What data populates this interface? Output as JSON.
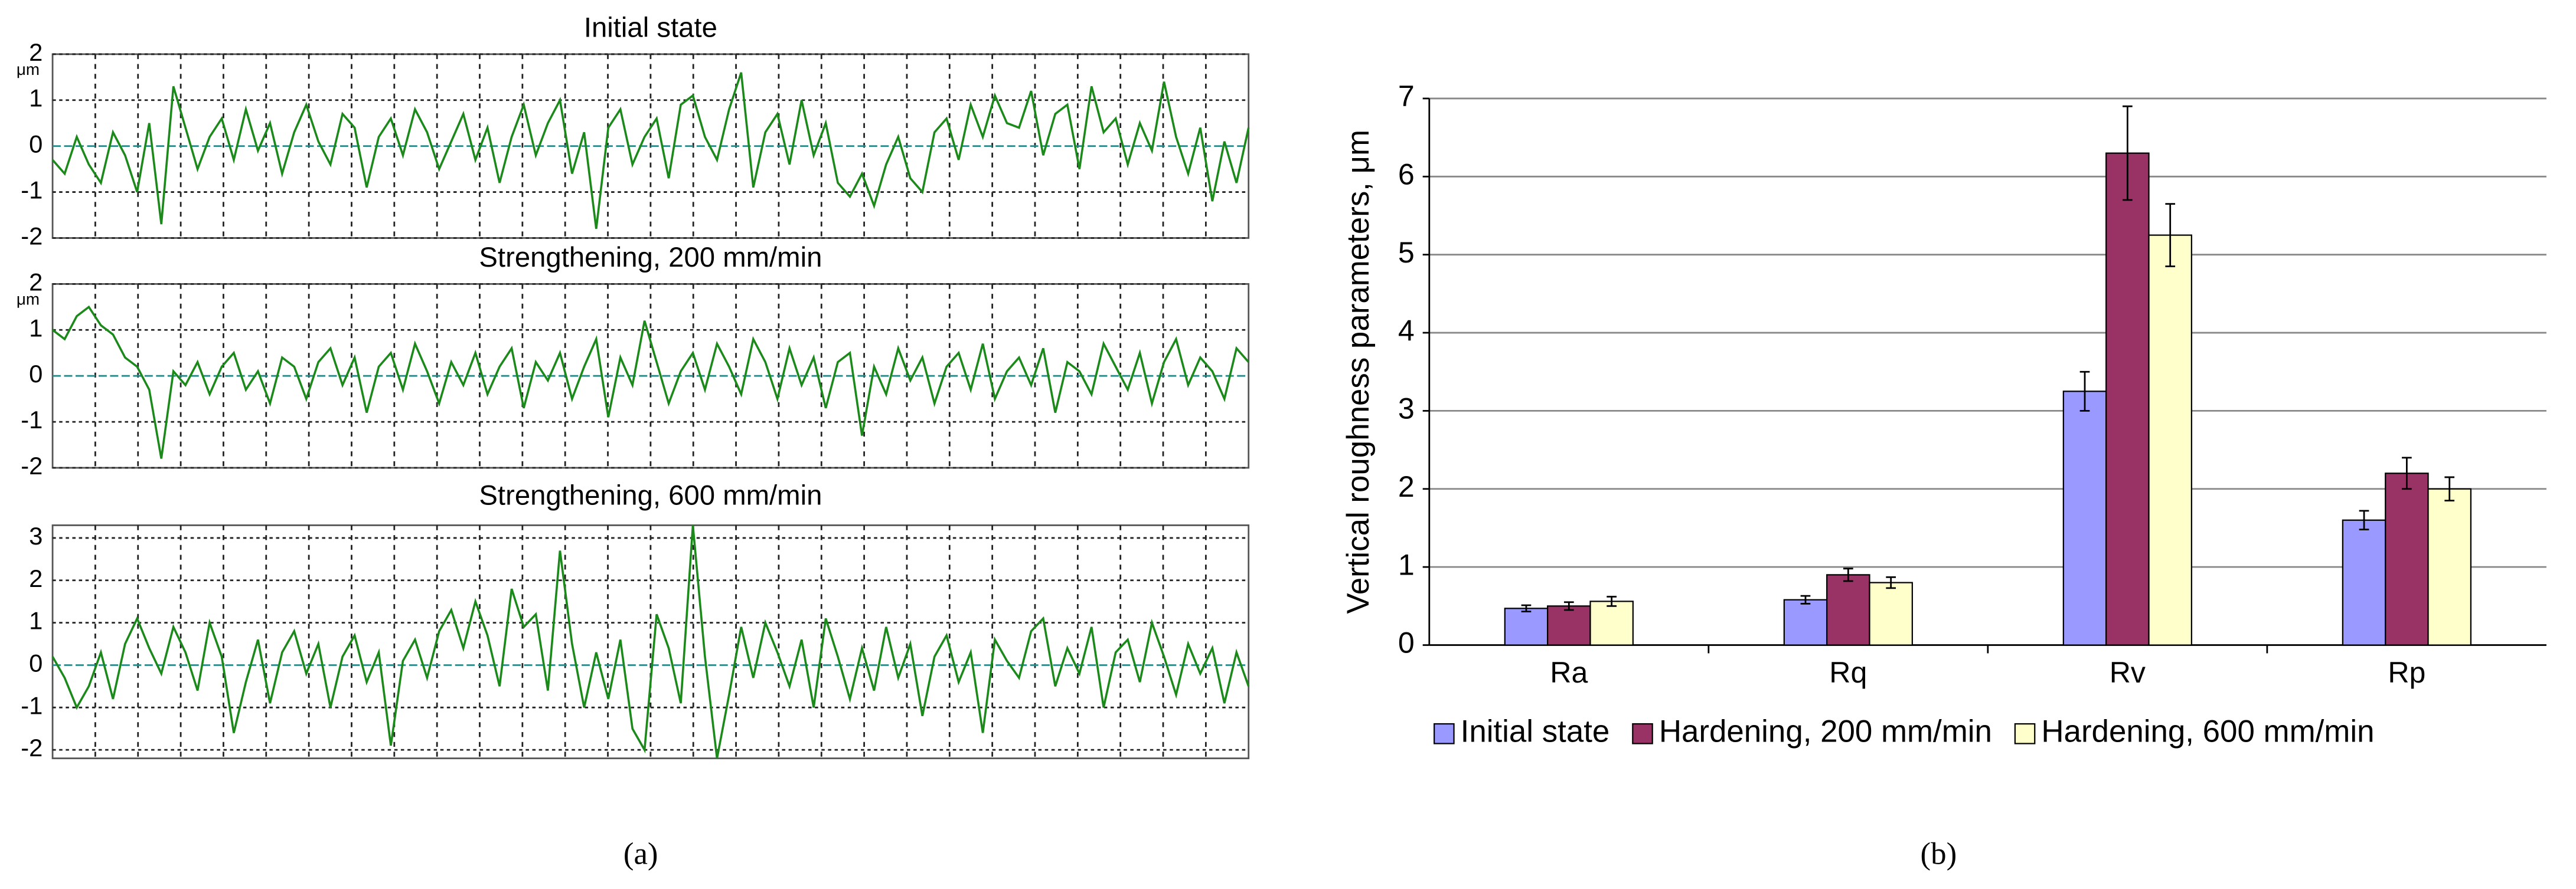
{
  "chart_data": [
    {
      "type": "line",
      "title": "Initial state",
      "y_unit": "μm",
      "color": "#1b8a1b",
      "ylim": [
        -2,
        2
      ],
      "yticks": [
        -2,
        -1,
        0,
        1,
        2
      ],
      "grid": true,
      "values": [
        -0.3,
        -0.6,
        0.2,
        -0.4,
        -0.8,
        0.3,
        -0.2,
        -1.0,
        0.5,
        -1.7,
        1.3,
        0.4,
        -0.5,
        0.2,
        0.6,
        -0.3,
        0.8,
        -0.1,
        0.5,
        -0.6,
        0.3,
        0.9,
        0.1,
        -0.4,
        0.7,
        0.4,
        -0.9,
        0.2,
        0.6,
        -0.2,
        0.8,
        0.3,
        -0.5,
        0.1,
        0.7,
        -0.3,
        0.4,
        -0.8,
        0.2,
        0.9,
        -0.2,
        0.5,
        1.0,
        -0.6,
        0.3,
        -1.8,
        0.4,
        0.8,
        -0.4,
        0.2,
        0.6,
        -0.7,
        0.9,
        1.1,
        0.2,
        -0.3,
        0.8,
        1.6,
        -0.9,
        0.3,
        0.7,
        -0.4,
        1.0,
        -0.2,
        0.5,
        -0.8,
        -1.1,
        -0.6,
        -1.3,
        -0.4,
        0.2,
        -0.7,
        -1.0,
        0.3,
        0.6,
        -0.3,
        0.9,
        0.2,
        1.1,
        0.5,
        0.4,
        1.2,
        -0.2,
        0.7,
        0.9,
        -0.5,
        1.3,
        0.3,
        0.6,
        -0.4,
        0.5,
        -0.1,
        1.4,
        0.2,
        -0.6,
        0.4,
        -1.2,
        0.1,
        -0.8,
        0.4
      ]
    },
    {
      "type": "line",
      "title": "Strengthening, 200 mm/min",
      "y_unit": "μm",
      "color": "#1b8a1b",
      "ylim": [
        -2,
        2
      ],
      "yticks": [
        -2,
        -1,
        0,
        1,
        2
      ],
      "grid": true,
      "values": [
        1.0,
        0.8,
        1.3,
        1.5,
        1.1,
        0.9,
        0.4,
        0.2,
        -0.3,
        -1.8,
        0.1,
        -0.2,
        0.3,
        -0.4,
        0.2,
        0.5,
        -0.3,
        0.1,
        -0.6,
        0.4,
        0.2,
        -0.5,
        0.3,
        0.6,
        -0.2,
        0.4,
        -0.8,
        0.2,
        0.5,
        -0.3,
        0.7,
        0.1,
        -0.6,
        0.3,
        -0.2,
        0.5,
        -0.4,
        0.2,
        0.6,
        -0.7,
        0.3,
        -0.1,
        0.5,
        -0.5,
        0.2,
        0.8,
        -0.9,
        0.4,
        -0.2,
        1.2,
        0.3,
        -0.6,
        0.1,
        0.5,
        -0.3,
        0.7,
        0.2,
        -0.4,
        0.8,
        0.3,
        -0.5,
        0.6,
        -0.2,
        0.4,
        -0.7,
        0.3,
        0.5,
        -1.3,
        0.2,
        -0.4,
        0.6,
        -0.1,
        0.4,
        -0.6,
        0.2,
        0.5,
        -0.3,
        0.7,
        -0.5,
        0.1,
        0.4,
        -0.2,
        0.6,
        -0.8,
        0.3,
        0.1,
        -0.4,
        0.7,
        0.2,
        -0.3,
        0.5,
        -0.6,
        0.3,
        0.8,
        -0.2,
        0.4,
        0.1,
        -0.5,
        0.6,
        0.3
      ]
    },
    {
      "type": "line",
      "title": "Strengthening, 600 mm/min",
      "color": "#1b8a1b",
      "ylim": [
        -2.2,
        3.3
      ],
      "yticks": [
        -2,
        -1,
        0,
        1,
        2,
        3
      ],
      "grid": true,
      "values": [
        0.2,
        -0.3,
        -1.0,
        -0.5,
        0.3,
        -0.8,
        0.5,
        1.1,
        0.4,
        -0.2,
        0.9,
        0.3,
        -0.6,
        1.0,
        0.2,
        -1.6,
        -0.4,
        0.6,
        -0.9,
        0.3,
        0.8,
        -0.2,
        0.5,
        -1.0,
        0.2,
        0.7,
        -0.4,
        0.3,
        -1.9,
        0.1,
        0.6,
        -0.3,
        0.8,
        1.3,
        0.4,
        1.5,
        0.7,
        -0.5,
        1.8,
        0.9,
        1.2,
        -0.6,
        2.7,
        0.5,
        -1.0,
        0.3,
        -0.8,
        0.6,
        -1.5,
        -2.0,
        1.2,
        0.4,
        -0.9,
        3.3,
        0.2,
        -2.2,
        -0.7,
        0.9,
        -0.3,
        1.0,
        0.3,
        -0.5,
        0.6,
        -1.0,
        1.1,
        0.2,
        -0.8,
        0.4,
        -0.6,
        0.9,
        -0.3,
        0.5,
        -1.2,
        0.2,
        0.7,
        -0.4,
        0.3,
        -1.6,
        0.6,
        0.1,
        -0.3,
        0.8,
        1.1,
        -0.5,
        0.4,
        -0.2,
        0.9,
        -1.0,
        0.3,
        0.6,
        -0.4,
        1.0,
        0.2,
        -0.7,
        0.5,
        -0.2,
        0.4,
        -0.9,
        0.3,
        -0.5
      ]
    },
    {
      "type": "bar",
      "ylabel": "Vertical roughness parameters, μm",
      "ylim": [
        0,
        7
      ],
      "yticks": [
        0,
        1,
        2,
        3,
        4,
        5,
        6,
        7
      ],
      "grid": true,
      "legend": "bottom",
      "categories": [
        "Ra",
        "Rq",
        "Rv",
        "Rp"
      ],
      "series": [
        {
          "name": "Initial state",
          "color": "#9999ff",
          "values": [
            0.47,
            0.58,
            3.25,
            1.6
          ],
          "errors": [
            0.04,
            0.05,
            0.25,
            0.12
          ]
        },
        {
          "name": "Hardening, 200 mm/min",
          "color": "#993366",
          "values": [
            0.5,
            0.9,
            6.3,
            2.2
          ],
          "errors": [
            0.05,
            0.08,
            0.6,
            0.2
          ]
        },
        {
          "name": "Hardening, 600 mm/min",
          "color": "#ffffcc",
          "values": [
            0.56,
            0.8,
            5.25,
            2.0
          ],
          "errors": [
            0.06,
            0.07,
            0.4,
            0.15
          ]
        }
      ]
    }
  ],
  "captions": [
    "(a)",
    "(b)"
  ]
}
